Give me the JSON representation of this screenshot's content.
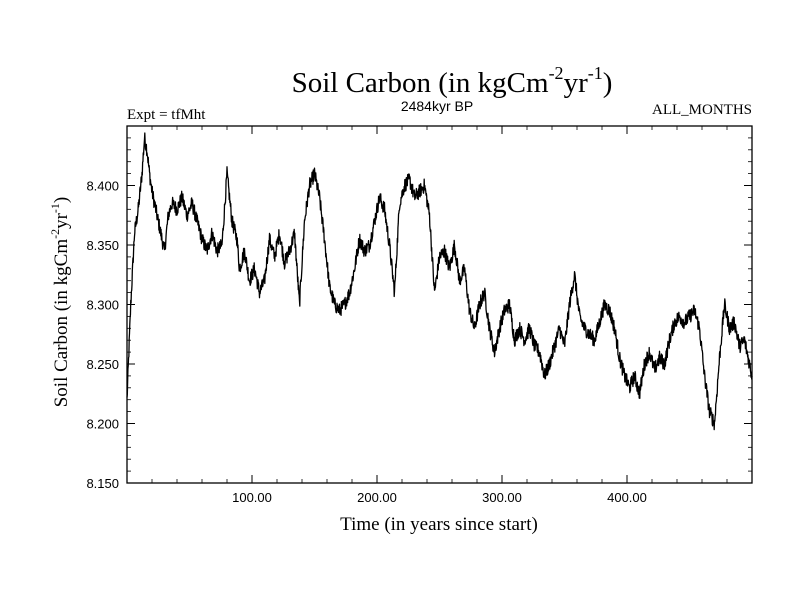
{
  "chart_data": {
    "type": "line",
    "title_main": "Soil Carbon (in kgCm",
    "title_sup1": "-2",
    "title_mid": "yr",
    "title_sup2": "-1",
    "title_end": ")",
    "subtitle_left": "Expt = tfMht",
    "subtitle_center": "2484kyr BP",
    "subtitle_right": "ALL_MONTHS",
    "xlabel": "Time (in years since start)",
    "ylabel_main": "Soil Carbon (in kgCm",
    "ylabel_sup1": "-2",
    "ylabel_mid": "yr",
    "ylabel_sup2": "-1",
    "ylabel_end": ")",
    "xlim": [
      0,
      500
    ],
    "ylim": [
      8.15,
      8.45
    ],
    "x_ticks": [
      100,
      200,
      300,
      400
    ],
    "x_tick_labels": [
      "100.00",
      "200.00",
      "300.00",
      "400.00"
    ],
    "y_ticks": [
      8.15,
      8.2,
      8.25,
      8.3,
      8.35,
      8.4
    ],
    "y_tick_labels": [
      "8.150",
      "8.200",
      "8.250",
      "8.300",
      "8.350",
      "8.400"
    ],
    "series": [
      {
        "name": "Soil Carbon",
        "x": [
          0,
          3,
          6,
          9,
          12,
          14,
          16,
          18,
          20,
          22,
          25,
          28,
          30,
          33,
          36,
          40,
          44,
          48,
          52,
          56,
          60,
          64,
          68,
          72,
          76,
          80,
          84,
          88,
          90,
          94,
          98,
          102,
          106,
          110,
          114,
          118,
          122,
          126,
          130,
          134,
          138,
          142,
          146,
          150,
          154,
          158,
          162,
          166,
          170,
          174,
          178,
          182,
          186,
          190,
          194,
          198,
          202,
          206,
          210,
          214,
          218,
          222,
          226,
          230,
          234,
          238,
          242,
          246,
          250,
          254,
          258,
          262,
          266,
          270,
          274,
          278,
          282,
          286,
          290,
          294,
          298,
          302,
          306,
          310,
          314,
          318,
          322,
          326,
          330,
          334,
          338,
          342,
          346,
          350,
          354,
          358,
          362,
          366,
          370,
          374,
          378,
          382,
          386,
          390,
          394,
          398,
          402,
          406,
          410,
          414,
          418,
          422,
          426,
          430,
          434,
          438,
          442,
          446,
          450,
          454,
          458,
          462,
          466,
          470,
          474,
          478,
          482,
          486,
          490,
          494,
          498,
          500
        ],
        "y": [
          8.22,
          8.3,
          8.36,
          8.38,
          8.41,
          8.44,
          8.43,
          8.41,
          8.395,
          8.385,
          8.37,
          8.355,
          8.345,
          8.375,
          8.385,
          8.38,
          8.39,
          8.375,
          8.385,
          8.37,
          8.355,
          8.345,
          8.36,
          8.345,
          8.35,
          8.41,
          8.37,
          8.355,
          8.33,
          8.345,
          8.32,
          8.33,
          8.31,
          8.32,
          8.355,
          8.34,
          8.36,
          8.335,
          8.345,
          8.36,
          8.3,
          8.37,
          8.4,
          8.41,
          8.39,
          8.355,
          8.315,
          8.3,
          8.295,
          8.3,
          8.31,
          8.33,
          8.355,
          8.345,
          8.35,
          8.37,
          8.39,
          8.38,
          8.35,
          8.31,
          8.385,
          8.4,
          8.405,
          8.39,
          8.395,
          8.4,
          8.375,
          8.31,
          8.34,
          8.345,
          8.33,
          8.35,
          8.32,
          8.33,
          8.295,
          8.28,
          8.3,
          8.31,
          8.28,
          8.26,
          8.28,
          8.295,
          8.3,
          8.27,
          8.28,
          8.27,
          8.28,
          8.265,
          8.26,
          8.24,
          8.25,
          8.265,
          8.28,
          8.265,
          8.3,
          8.325,
          8.29,
          8.28,
          8.275,
          8.27,
          8.285,
          8.3,
          8.295,
          8.28,
          8.255,
          8.24,
          8.23,
          8.24,
          8.225,
          8.25,
          8.26,
          8.245,
          8.255,
          8.25,
          8.27,
          8.285,
          8.29,
          8.285,
          8.29,
          8.295,
          8.28,
          8.24,
          8.21,
          8.2,
          8.255,
          8.3,
          8.28,
          8.285,
          8.265,
          8.27,
          8.25,
          8.24
        ]
      }
    ]
  }
}
